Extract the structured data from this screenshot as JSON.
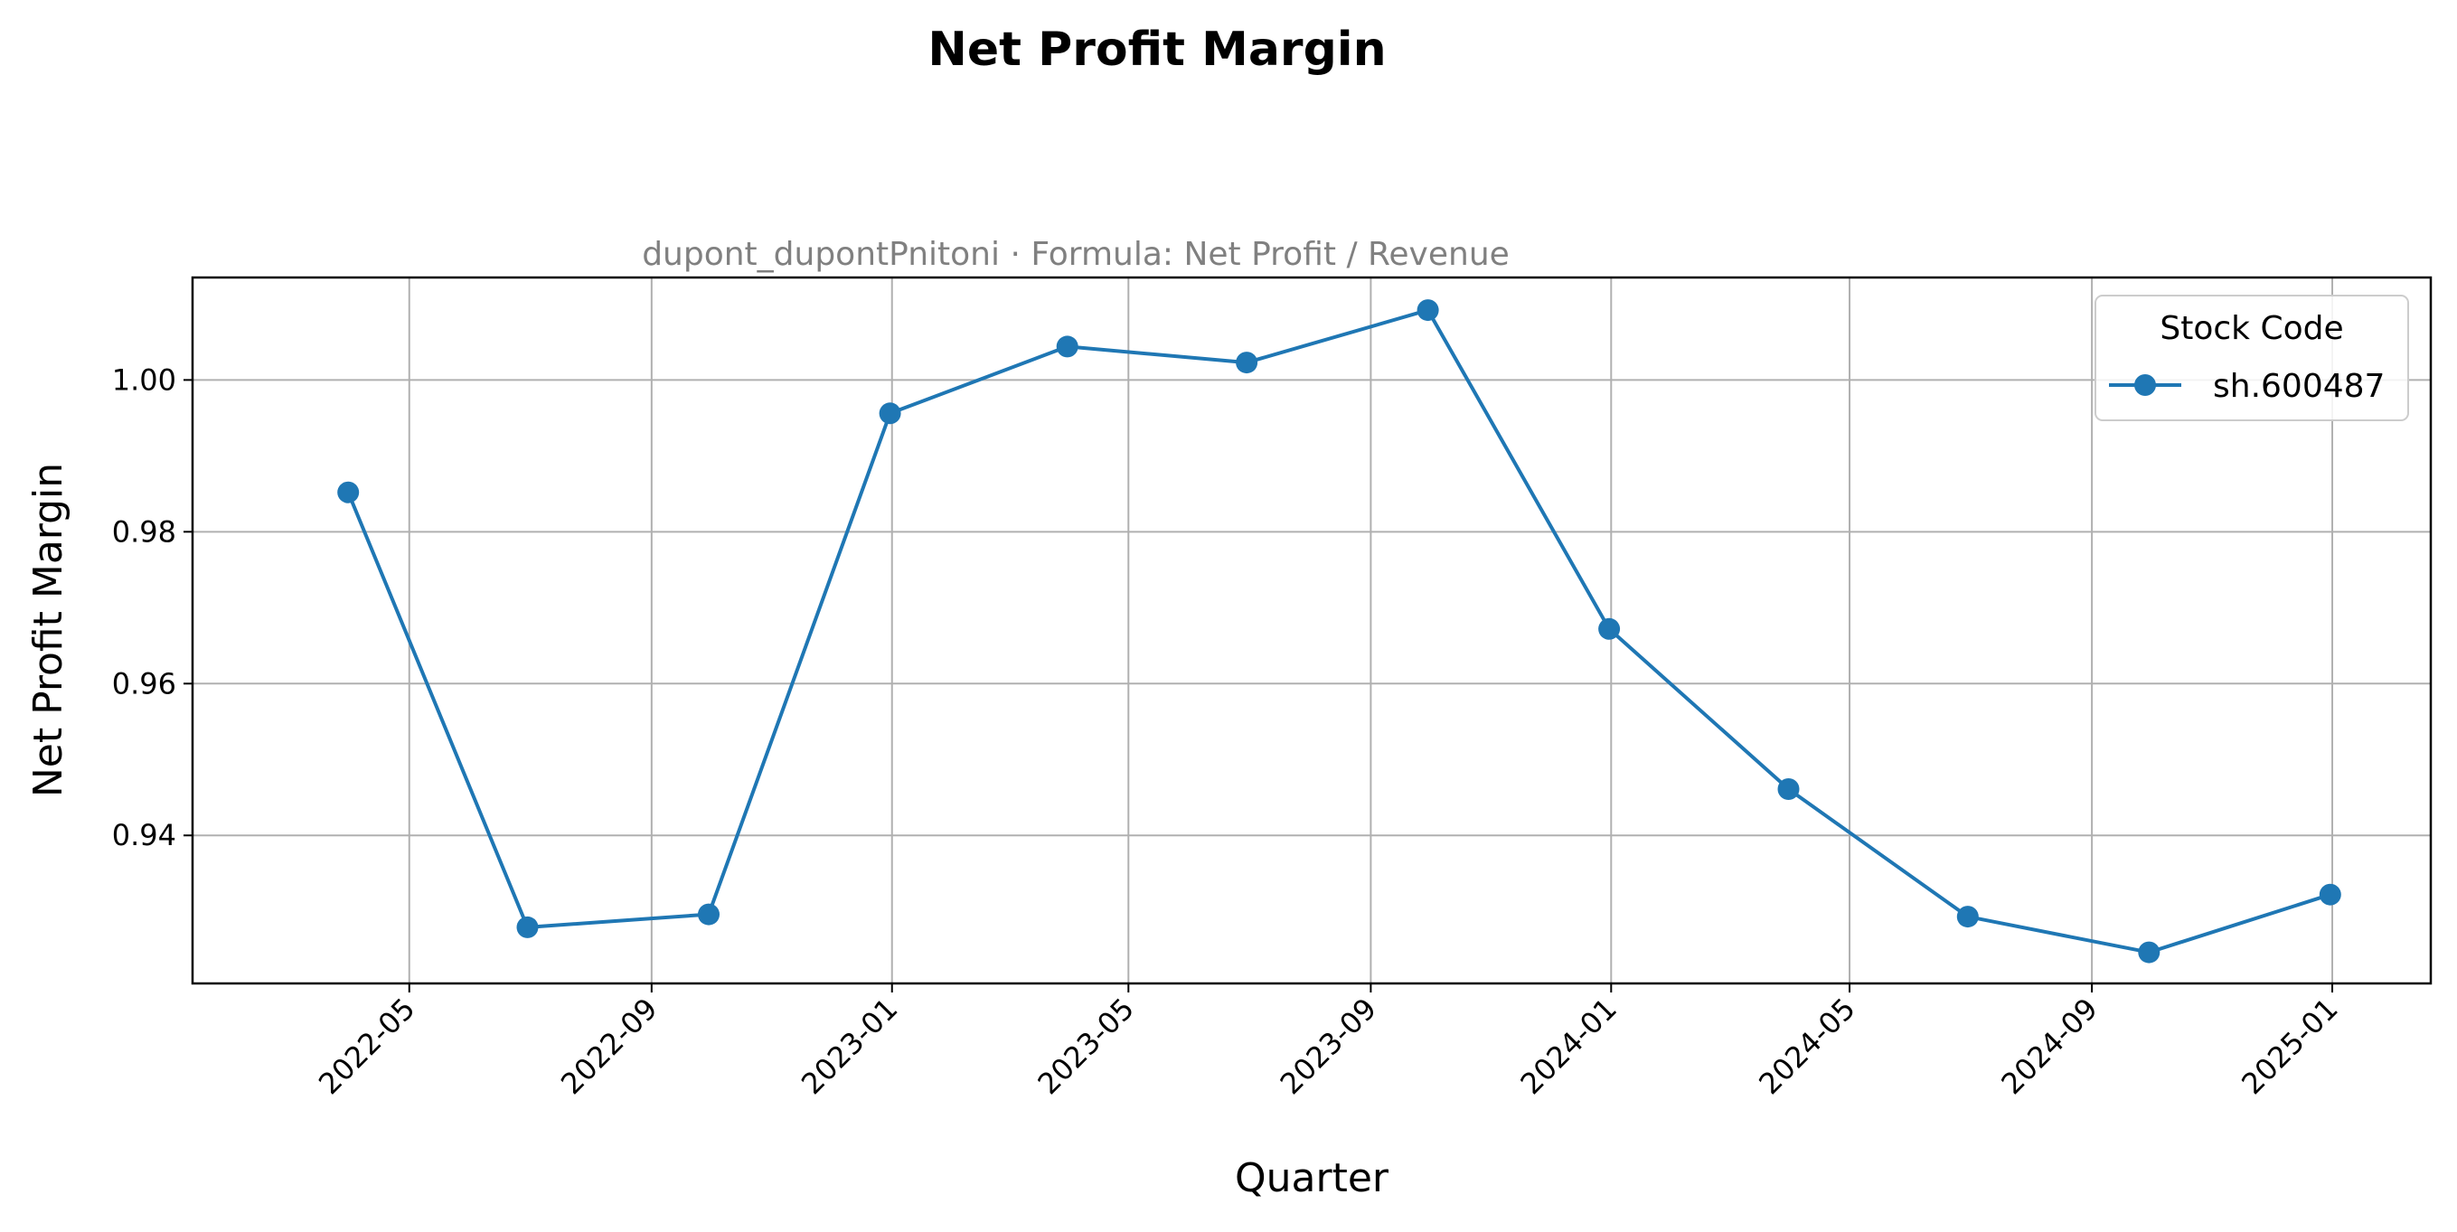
{
  "chart_data": {
    "type": "line",
    "title": "Net Profit Margin",
    "subtitle": "dupont_dupontPnitoni · Formula: Net Profit / Revenue",
    "xlabel": "Quarter",
    "ylabel": "Net Profit Margin",
    "x_tick_labels": [
      "2022-05",
      "2022-09",
      "2023-01",
      "2023-05",
      "2023-09",
      "2024-01",
      "2024-05",
      "2024-09",
      "2025-01"
    ],
    "y_ticks": [
      0.94,
      0.96,
      0.98,
      1.0
    ],
    "y_tick_labels": [
      "0.94",
      "0.96",
      "0.98",
      "1.00"
    ],
    "ylim": [
      0.9205,
      1.0135
    ],
    "xlim": [
      "2022-01-11",
      "2025-02-20"
    ],
    "grid": true,
    "legend": {
      "title": "Stock Code",
      "placement": "top-right"
    },
    "series": [
      {
        "name": "sh.600487",
        "color": "#1f77b4",
        "marker": "circle",
        "x": [
          "2022-03-31",
          "2022-06-30",
          "2022-09-30",
          "2022-12-31",
          "2023-03-31",
          "2023-06-30",
          "2023-09-30",
          "2023-12-31",
          "2024-03-31",
          "2024-06-30",
          "2024-09-30",
          "2024-12-31"
        ],
        "values": [
          0.9852,
          0.9279,
          0.9296,
          0.9956,
          1.0044,
          1.0023,
          1.0092,
          0.9672,
          0.9461,
          0.9293,
          0.9246,
          0.9322
        ]
      }
    ]
  }
}
